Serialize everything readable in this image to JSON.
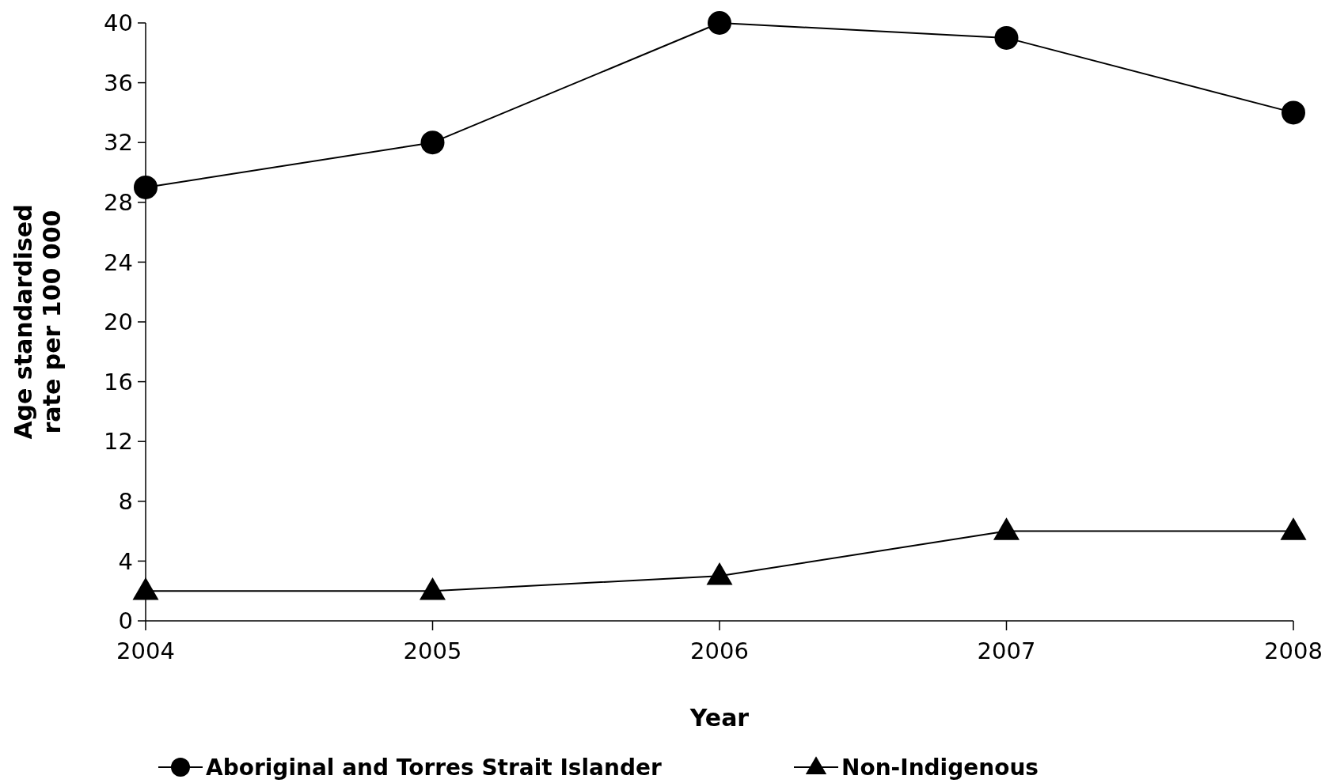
{
  "chart_data": {
    "type": "line",
    "xlabel": "Year",
    "ylabel": "Age standardised rate per 100 000",
    "categories": [
      "2004",
      "2005",
      "2006",
      "2007",
      "2008"
    ],
    "series": [
      {
        "name": "Aboriginal and Torres Strait Islander",
        "color": "#000000",
        "marker": "circle",
        "values": [
          29,
          32,
          40,
          39,
          34
        ]
      },
      {
        "name": "Non-Indigenous",
        "color": "#000000",
        "marker": "triangle",
        "values": [
          2,
          2,
          3,
          6,
          6
        ]
      }
    ],
    "ylim": [
      0,
      40
    ],
    "yticks": [
      0,
      4,
      8,
      12,
      16,
      20,
      24,
      28,
      32,
      36,
      40
    ],
    "grid": false,
    "legend": "bottom"
  }
}
